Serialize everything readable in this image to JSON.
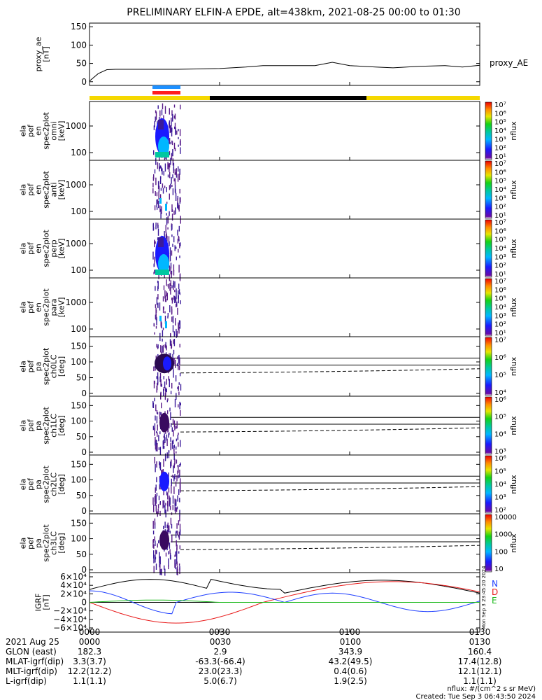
{
  "title": "PRELIMINARY ELFIN-A EPDE, alt=438km, 2021-08-25 00:00 to 01:30",
  "colors": {
    "bar_yellow": "#f5d800",
    "bar_black": "#000000",
    "marker_blue": "#1e90ff",
    "marker_red": "#ff1e1e",
    "geo_n": "#1f3fff",
    "geo_d": "#e81818",
    "geo_e": "#18b818"
  },
  "chart_data": [
    {
      "type": "line",
      "name": "proxy_ae",
      "ylabel": "proxy_ae",
      "yunit": "[nT]",
      "yticks": [
        "150",
        "100",
        "50",
        "0"
      ],
      "ylim": [
        -10,
        160
      ],
      "legend": "proxy_AE",
      "x_minutes": [
        0,
        2,
        4,
        6,
        10,
        20,
        30,
        36,
        40,
        44,
        52,
        56,
        60,
        66,
        70,
        76,
        82,
        86,
        90
      ],
      "values": [
        2,
        22,
        33,
        34,
        34,
        34,
        36,
        40,
        44,
        44,
        44,
        53,
        44,
        40,
        38,
        42,
        44,
        40,
        45
      ]
    },
    {
      "type": "heatmap",
      "name": "ela_pef_en_spec2plot_omni",
      "ylabel": [
        "ela",
        "pef",
        "en",
        "spec2plot",
        "omni",
        "[keV]"
      ],
      "yticks": [
        "1000",
        "100"
      ],
      "colorbar": {
        "label": "nflux",
        "ticks": [
          "10⁷",
          "10⁶",
          "10⁵",
          "10⁴",
          "10³",
          "10²",
          "10¹"
        ]
      }
    },
    {
      "type": "heatmap",
      "name": "ela_pef_en_spec2plot_anti",
      "ylabel": [
        "ela",
        "pef",
        "en",
        "spec2plot",
        "anti",
        "[keV]"
      ],
      "yticks": [
        "1000",
        "100"
      ],
      "colorbar": {
        "label": "nflux",
        "ticks": [
          "10⁷",
          "10⁶",
          "10⁵",
          "10⁴",
          "10³",
          "10²",
          "10¹"
        ]
      }
    },
    {
      "type": "heatmap",
      "name": "ela_pef_en_spec2plot_perp",
      "ylabel": [
        "ela",
        "pef",
        "en",
        "spec2plot",
        "perp",
        "[keV]"
      ],
      "yticks": [
        "1000",
        "100"
      ],
      "colorbar": {
        "label": "nflux",
        "ticks": [
          "10⁷",
          "10⁶",
          "10⁵",
          "10⁴",
          "10³",
          "10²",
          "10¹"
        ]
      }
    },
    {
      "type": "heatmap",
      "name": "ela_pef_en_spec2plot_para",
      "ylabel": [
        "ela",
        "pef",
        "en",
        "spec2plot",
        "para",
        "[keV]"
      ],
      "yticks": [
        "1000",
        "100"
      ],
      "colorbar": {
        "label": "nflux",
        "ticks": [
          "10⁷",
          "10⁶",
          "10⁵",
          "10⁴",
          "10³",
          "10²",
          "10¹"
        ]
      }
    },
    {
      "type": "heatmap",
      "name": "ela_pef_pa_spec2plot_ch0LC",
      "ylabel": [
        "ela",
        "pef",
        "pa",
        "spec2plot",
        "ch0LC",
        "[deg]"
      ],
      "yticks": [
        "150",
        "100",
        "50",
        "0"
      ],
      "colorbar": {
        "label": "nflux",
        "ticks": [
          "10⁷",
          "10⁶",
          "10⁵",
          "10⁴"
        ]
      }
    },
    {
      "type": "heatmap",
      "name": "ela_pef_pa_spec2plot_ch1LC",
      "ylabel": [
        "ela",
        "pef",
        "pa",
        "spec2plot",
        "ch1LC",
        "[deg]"
      ],
      "yticks": [
        "150",
        "100",
        "50",
        "0"
      ],
      "colorbar": {
        "label": "nflux",
        "ticks": [
          "10⁶",
          "10⁵",
          "10⁴",
          "10³"
        ]
      }
    },
    {
      "type": "heatmap",
      "name": "ela_pef_pa_spec2plot_ch2LC",
      "ylabel": [
        "ela",
        "pef",
        "pa",
        "spec2plot",
        "ch2LC",
        "[deg]"
      ],
      "yticks": [
        "150",
        "100",
        "50",
        "0"
      ],
      "colorbar": {
        "label": "nflux",
        "ticks": [
          "10⁶",
          "10⁵",
          "10⁴",
          "10³",
          "10²"
        ]
      }
    },
    {
      "type": "heatmap",
      "name": "ela_pef_pa_spec2plot_ch3LC",
      "ylabel": [
        "ela",
        "pef",
        "pa",
        "spec2plot",
        "ch3LC",
        "[deg]"
      ],
      "yticks": [
        "150",
        "100",
        "50",
        "0"
      ],
      "colorbar": {
        "label": "nflux",
        "ticks": [
          "10000",
          "1000",
          "100",
          "10"
        ]
      }
    },
    {
      "type": "line",
      "name": "IGRF",
      "ylabel": "IGRF",
      "yunit": "[nT]",
      "yticks": [
        "6×10⁴",
        "4×10⁴",
        "2×10⁴",
        "0",
        "−2×10⁴",
        "−4×10⁴",
        "−6×10⁴"
      ],
      "ylim": [
        -60000,
        60000
      ],
      "legend_labels": [
        "N",
        "D",
        "E"
      ],
      "side_label": "Mon Sep 3 23:45:20 2024"
    }
  ],
  "x_axis": {
    "ticks": [
      "0000",
      "0030",
      "0100",
      "0130"
    ]
  },
  "footer": {
    "rows": [
      [
        "2021 Aug 25",
        "0000",
        "0030",
        "0100",
        "0130"
      ],
      [
        "GLON (east)",
        "182.3",
        "2.9",
        "343.9",
        "160.4"
      ],
      [
        "MLAT-igrf(dip)",
        "3.3(3.7)",
        "-63.3(-66.4)",
        "43.2(49.5)",
        "17.4(12.8)"
      ],
      [
        "MLT-igrf(dip)",
        "12.2(12.2)",
        "23.0(23.3)",
        "0.4(0.6)",
        "12.1(12.1)"
      ],
      [
        "L-igrf(dip)",
        "1.1(1.1)",
        "5.0(6.7)",
        "1.9(2.5)",
        "1.1(1.1)"
      ]
    ],
    "units_note": "nflux: #/(cm^2 s sr MeV)",
    "created": "Created: Tue Sep  3 06:43:50 2024"
  }
}
